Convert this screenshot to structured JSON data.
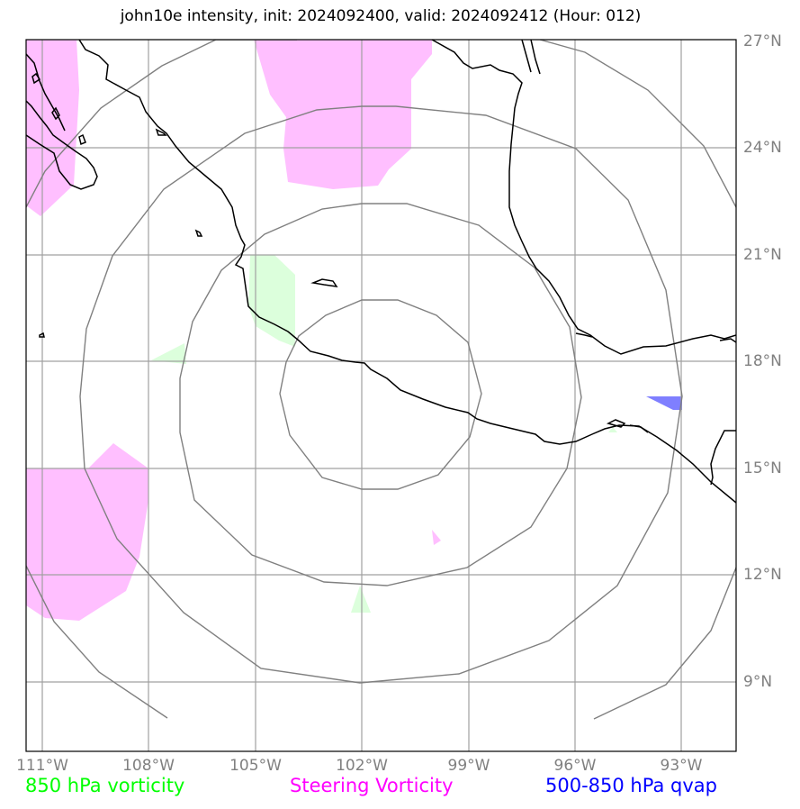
{
  "title": "john10e intensity, init: 2024092400, valid: 2024092412 (Hour: 012)",
  "map": {
    "lon_labels": [
      "111°W",
      "108°W",
      "105°W",
      "102°W",
      "99°W",
      "96°W",
      "93°W"
    ],
    "lat_labels": [
      "27°N",
      "24°N",
      "21°N",
      "18°N",
      "15°N",
      "12°N",
      "9°N"
    ],
    "lon_extent": [
      -111.5,
      -91.5
    ],
    "lat_extent": [
      7.0,
      27.0
    ],
    "range_rings_center": {
      "lon": -102.0,
      "lat": 16.8
    },
    "colors": {
      "grid": "#a0a0a0",
      "rings": "#808080",
      "coast": "#000000",
      "vorticity_850": "#dcffdc",
      "steering_vorticity": "#ffbfff",
      "qvap": "#7f7fff"
    }
  },
  "legend": {
    "vorticity_850": {
      "label": "850 hPa vorticity",
      "color": "#00ff00"
    },
    "steering": {
      "label": "Steering Vorticity",
      "color": "#ff00ff"
    },
    "qvap": {
      "label": "500-850 hPa qvap",
      "color": "#0000ff"
    }
  }
}
